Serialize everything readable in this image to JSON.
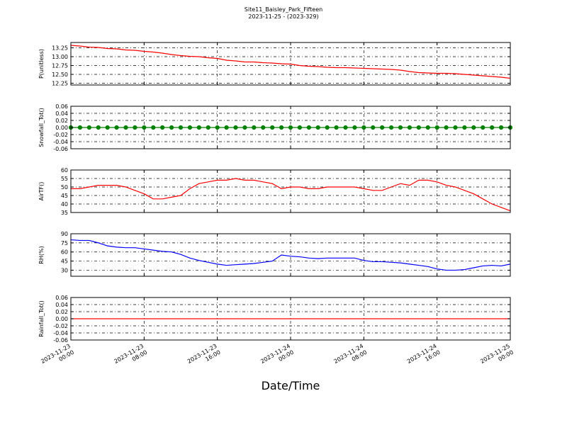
{
  "chart_data": [
    {
      "type": "line",
      "title": "Site11_Baisley_Park_Fifteen",
      "subtitle": "2023-11-25 - (2023-329)",
      "ylabel": "P(unitless)",
      "grid": true,
      "ylim": [
        12.2,
        13.4
      ],
      "yticks": [
        {
          "value": 12.25,
          "label": "12.25"
        },
        {
          "value": 12.5,
          "label": "12.50"
        },
        {
          "value": 12.75,
          "label": "12.75"
        },
        {
          "value": 13.0,
          "label": "13.00"
        },
        {
          "value": 13.25,
          "label": "13.25"
        }
      ],
      "x": [
        "2023-11-23 00:00",
        "2023-11-23 01:00",
        "2023-11-23 02:00",
        "2023-11-23 03:00",
        "2023-11-23 04:00",
        "2023-11-23 05:00",
        "2023-11-23 06:00",
        "2023-11-23 07:00",
        "2023-11-23 08:00",
        "2023-11-23 09:00",
        "2023-11-23 10:00",
        "2023-11-23 11:00",
        "2023-11-23 12:00",
        "2023-11-23 13:00",
        "2023-11-23 14:00",
        "2023-11-23 15:00",
        "2023-11-23 16:00",
        "2023-11-23 17:00",
        "2023-11-23 18:00",
        "2023-11-23 19:00",
        "2023-11-23 20:00",
        "2023-11-23 21:00",
        "2023-11-23 22:00",
        "2023-11-23 23:00",
        "2023-11-24 00:00",
        "2023-11-24 01:00",
        "2023-11-24 02:00",
        "2023-11-24 03:00",
        "2023-11-24 04:00",
        "2023-11-24 05:00",
        "2023-11-24 06:00",
        "2023-11-24 07:00",
        "2023-11-24 08:00",
        "2023-11-24 09:00",
        "2023-11-24 10:00",
        "2023-11-24 11:00",
        "2023-11-24 12:00",
        "2023-11-24 13:00",
        "2023-11-24 14:00",
        "2023-11-24 15:00",
        "2023-11-24 16:00",
        "2023-11-24 17:00",
        "2023-11-24 18:00",
        "2023-11-24 19:00",
        "2023-11-24 20:00",
        "2023-11-24 21:00",
        "2023-11-24 22:00",
        "2023-11-24 23:00",
        "2023-11-25 00:00"
      ],
      "series": [
        {
          "name": "P",
          "color": "#ff0000",
          "values": [
            13.32,
            13.3,
            13.27,
            13.26,
            13.23,
            13.22,
            13.19,
            13.18,
            13.15,
            13.13,
            13.1,
            13.06,
            13.03,
            13.01,
            13.0,
            12.97,
            12.95,
            12.9,
            12.88,
            12.85,
            12.85,
            12.83,
            12.82,
            12.8,
            12.79,
            12.75,
            12.73,
            12.72,
            12.7,
            12.69,
            12.69,
            12.68,
            12.67,
            12.66,
            12.65,
            12.64,
            12.62,
            12.58,
            12.55,
            12.54,
            12.53,
            12.53,
            12.52,
            12.5,
            12.48,
            12.46,
            12.44,
            12.42,
            12.39
          ]
        }
      ]
    },
    {
      "type": "line",
      "ylabel": "Snowfall_Tot()",
      "grid": true,
      "marker": "o",
      "ylim": [
        -0.06,
        0.06
      ],
      "yticks": [
        {
          "value": -0.06,
          "label": "-0.06"
        },
        {
          "value": -0.04,
          "label": "-0.04"
        },
        {
          "value": -0.02,
          "label": "-0.02"
        },
        {
          "value": 0,
          "label": "0.00"
        },
        {
          "value": 0.02,
          "label": "0.02"
        },
        {
          "value": 0.04,
          "label": "0.04"
        },
        {
          "value": 0.06,
          "label": "0.06"
        }
      ],
      "x": [
        "2023-11-23 00:00",
        "2023-11-23 01:00",
        "2023-11-23 02:00",
        "2023-11-23 03:00",
        "2023-11-23 04:00",
        "2023-11-23 05:00",
        "2023-11-23 06:00",
        "2023-11-23 07:00",
        "2023-11-23 08:00",
        "2023-11-23 09:00",
        "2023-11-23 10:00",
        "2023-11-23 11:00",
        "2023-11-23 12:00",
        "2023-11-23 13:00",
        "2023-11-23 14:00",
        "2023-11-23 15:00",
        "2023-11-23 16:00",
        "2023-11-23 17:00",
        "2023-11-23 18:00",
        "2023-11-23 19:00",
        "2023-11-23 20:00",
        "2023-11-23 21:00",
        "2023-11-23 22:00",
        "2023-11-23 23:00",
        "2023-11-24 00:00",
        "2023-11-24 01:00",
        "2023-11-24 02:00",
        "2023-11-24 03:00",
        "2023-11-24 04:00",
        "2023-11-24 05:00",
        "2023-11-24 06:00",
        "2023-11-24 07:00",
        "2023-11-24 08:00",
        "2023-11-24 09:00",
        "2023-11-24 10:00",
        "2023-11-24 11:00",
        "2023-11-24 12:00",
        "2023-11-24 13:00",
        "2023-11-24 14:00",
        "2023-11-24 15:00",
        "2023-11-24 16:00",
        "2023-11-24 17:00",
        "2023-11-24 18:00",
        "2023-11-24 19:00",
        "2023-11-24 20:00",
        "2023-11-24 21:00",
        "2023-11-24 22:00",
        "2023-11-24 23:00",
        "2023-11-25 00:00"
      ],
      "series": [
        {
          "name": "Snowfall_Tot",
          "color": "#008000",
          "values": [
            0,
            0,
            0,
            0,
            0,
            0,
            0,
            0,
            0,
            0,
            0,
            0,
            0,
            0,
            0,
            0,
            0,
            0,
            0,
            0,
            0,
            0,
            0,
            0,
            0,
            0,
            0,
            0,
            0,
            0,
            0,
            0,
            0,
            0,
            0,
            0,
            0,
            0,
            0,
            0,
            0,
            0,
            0,
            0,
            0,
            0,
            0,
            0,
            0
          ]
        }
      ]
    },
    {
      "type": "line",
      "ylabel": "AirTF()",
      "grid": true,
      "ylim": [
        35,
        60
      ],
      "yticks": [
        35,
        40,
        45,
        50,
        55,
        60
      ],
      "x": [
        "2023-11-23 00:00",
        "2023-11-23 01:00",
        "2023-11-23 02:00",
        "2023-11-23 03:00",
        "2023-11-23 04:00",
        "2023-11-23 05:00",
        "2023-11-23 06:00",
        "2023-11-23 07:00",
        "2023-11-23 08:00",
        "2023-11-23 09:00",
        "2023-11-23 10:00",
        "2023-11-23 11:00",
        "2023-11-23 12:00",
        "2023-11-23 13:00",
        "2023-11-23 14:00",
        "2023-11-23 15:00",
        "2023-11-23 16:00",
        "2023-11-23 17:00",
        "2023-11-23 18:00",
        "2023-11-23 19:00",
        "2023-11-23 20:00",
        "2023-11-23 21:00",
        "2023-11-23 22:00",
        "2023-11-23 23:00",
        "2023-11-24 00:00",
        "2023-11-24 01:00",
        "2023-11-24 02:00",
        "2023-11-24 03:00",
        "2023-11-24 04:00",
        "2023-11-24 05:00",
        "2023-11-24 06:00",
        "2023-11-24 07:00",
        "2023-11-24 08:00",
        "2023-11-24 09:00",
        "2023-11-24 10:00",
        "2023-11-24 11:00",
        "2023-11-24 12:00",
        "2023-11-24 13:00",
        "2023-11-24 14:00",
        "2023-11-24 15:00",
        "2023-11-24 16:00",
        "2023-11-24 17:00",
        "2023-11-24 18:00",
        "2023-11-24 19:00",
        "2023-11-24 20:00",
        "2023-11-24 21:00",
        "2023-11-24 22:00",
        "2023-11-24 23:00",
        "2023-11-25 00:00"
      ],
      "series": [
        {
          "name": "AirTF",
          "color": "#ff0000",
          "values": [
            49,
            49,
            50,
            51,
            51,
            51,
            50,
            48,
            46,
            43,
            43,
            44,
            45,
            49,
            52,
            53,
            54,
            54,
            55,
            54,
            54,
            53,
            52,
            49,
            50,
            50,
            49,
            49,
            50,
            50,
            50,
            50,
            49,
            48,
            48,
            50,
            52,
            51,
            54,
            54,
            53,
            51,
            50,
            48,
            46,
            43,
            40,
            38,
            36
          ]
        }
      ]
    },
    {
      "type": "line",
      "ylabel": "RH(%)",
      "grid": true,
      "ylim": [
        20,
        90
      ],
      "yticks": [
        30,
        45,
        60,
        75,
        90
      ],
      "x": [
        "2023-11-23 00:00",
        "2023-11-23 01:00",
        "2023-11-23 02:00",
        "2023-11-23 03:00",
        "2023-11-23 04:00",
        "2023-11-23 05:00",
        "2023-11-23 06:00",
        "2023-11-23 07:00",
        "2023-11-23 08:00",
        "2023-11-23 09:00",
        "2023-11-23 10:00",
        "2023-11-23 11:00",
        "2023-11-23 12:00",
        "2023-11-23 13:00",
        "2023-11-23 14:00",
        "2023-11-23 15:00",
        "2023-11-23 16:00",
        "2023-11-23 17:00",
        "2023-11-23 18:00",
        "2023-11-23 19:00",
        "2023-11-23 20:00",
        "2023-11-23 21:00",
        "2023-11-23 22:00",
        "2023-11-23 23:00",
        "2023-11-24 00:00",
        "2023-11-24 01:00",
        "2023-11-24 02:00",
        "2023-11-24 03:00",
        "2023-11-24 04:00",
        "2023-11-24 05:00",
        "2023-11-24 06:00",
        "2023-11-24 07:00",
        "2023-11-24 08:00",
        "2023-11-24 09:00",
        "2023-11-24 10:00",
        "2023-11-24 11:00",
        "2023-11-24 12:00",
        "2023-11-24 13:00",
        "2023-11-24 14:00",
        "2023-11-24 15:00",
        "2023-11-24 16:00",
        "2023-11-24 17:00",
        "2023-11-24 18:00",
        "2023-11-24 19:00",
        "2023-11-24 20:00",
        "2023-11-24 21:00",
        "2023-11-24 22:00",
        "2023-11-24 23:00",
        "2023-11-25 00:00"
      ],
      "series": [
        {
          "name": "RH",
          "color": "#0000ff",
          "values": [
            80,
            79,
            79,
            75,
            70,
            68,
            67,
            67,
            65,
            63,
            61,
            60,
            56,
            50,
            46,
            43,
            40,
            38,
            39,
            40,
            41,
            43,
            45,
            55,
            53,
            52,
            50,
            49,
            50,
            50,
            50,
            50,
            46,
            44,
            44,
            43,
            42,
            40,
            38,
            36,
            32,
            30,
            30,
            31,
            34,
            37,
            38,
            37,
            40
          ]
        }
      ]
    },
    {
      "type": "line",
      "ylabel": "Rainfall_Tot()",
      "xlabel": "Date/Time",
      "grid": true,
      "ylim": [
        -0.06,
        0.06
      ],
      "yticks": [
        {
          "value": -0.06,
          "label": "-0.06"
        },
        {
          "value": -0.04,
          "label": "-0.04"
        },
        {
          "value": -0.02,
          "label": "-0.02"
        },
        {
          "value": 0,
          "label": "0.00"
        },
        {
          "value": 0.02,
          "label": "0.02"
        },
        {
          "value": 0.04,
          "label": "0.04"
        },
        {
          "value": 0.06,
          "label": "0.06"
        }
      ],
      "xlim": [
        "2023-11-23 00:00",
        "2023-11-25 00:00"
      ],
      "xticks": [
        "2023-11-23 00:00",
        "2023-11-23 08:00",
        "2023-11-23 16:00",
        "2023-11-24 00:00",
        "2023-11-24 08:00",
        "2023-11-24 16:00",
        "2023-11-25 00:00"
      ],
      "x": [
        "2023-11-23 00:00",
        "2023-11-23 01:00",
        "2023-11-23 02:00",
        "2023-11-23 03:00",
        "2023-11-23 04:00",
        "2023-11-23 05:00",
        "2023-11-23 06:00",
        "2023-11-23 07:00",
        "2023-11-23 08:00",
        "2023-11-23 09:00",
        "2023-11-23 10:00",
        "2023-11-23 11:00",
        "2023-11-23 12:00",
        "2023-11-23 13:00",
        "2023-11-23 14:00",
        "2023-11-23 15:00",
        "2023-11-23 16:00",
        "2023-11-23 17:00",
        "2023-11-23 18:00",
        "2023-11-23 19:00",
        "2023-11-23 20:00",
        "2023-11-23 21:00",
        "2023-11-23 22:00",
        "2023-11-23 23:00",
        "2023-11-24 00:00",
        "2023-11-24 01:00",
        "2023-11-24 02:00",
        "2023-11-24 03:00",
        "2023-11-24 04:00",
        "2023-11-24 05:00",
        "2023-11-24 06:00",
        "2023-11-24 07:00",
        "2023-11-24 08:00",
        "2023-11-24 09:00",
        "2023-11-24 10:00",
        "2023-11-24 11:00",
        "2023-11-24 12:00",
        "2023-11-24 13:00",
        "2023-11-24 14:00",
        "2023-11-24 15:00",
        "2023-11-24 16:00",
        "2023-11-24 17:00",
        "2023-11-24 18:00",
        "2023-11-24 19:00",
        "2023-11-24 20:00",
        "2023-11-24 21:00",
        "2023-11-24 22:00",
        "2023-11-24 23:00",
        "2023-11-25 00:00"
      ],
      "series": [
        {
          "name": "Rainfall_Tot",
          "color": "#ff0000",
          "values": [
            0,
            0,
            0,
            0,
            0,
            0,
            0,
            0,
            0,
            0,
            0,
            0,
            0,
            0,
            0,
            0,
            0,
            0,
            0,
            0,
            0,
            0,
            0,
            0,
            0,
            0,
            0,
            0,
            0,
            0,
            0,
            0,
            0,
            0,
            0,
            0,
            0,
            0,
            0,
            0,
            0,
            0,
            0,
            0,
            0,
            0,
            0,
            0,
            0
          ]
        }
      ]
    }
  ]
}
